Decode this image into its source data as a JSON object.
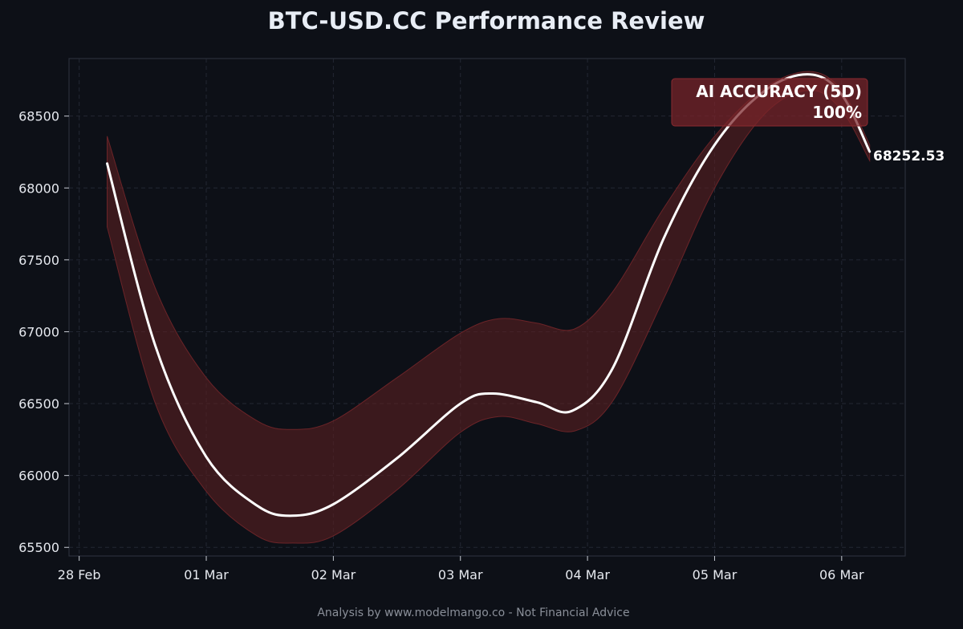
{
  "chart_data": {
    "type": "line",
    "title": "BTC-USD.CC Performance Review",
    "xlabel": "",
    "ylabel": "",
    "x_tick_labels": [
      "28 Feb",
      "01 Mar",
      "02 Mar",
      "03 Mar",
      "04 Mar",
      "05 Mar",
      "06 Mar"
    ],
    "y_ticks": [
      65500,
      66000,
      66500,
      67000,
      67500,
      68000,
      68500
    ],
    "xlim": [
      -0.08,
      6.5
    ],
    "ylim": [
      65440,
      68900
    ],
    "grid": true,
    "series": [
      {
        "role": "price",
        "x": [
          0.22,
          0.6,
          1.0,
          1.4,
          1.68,
          2.0,
          2.5,
          3.0,
          3.25,
          3.6,
          3.88,
          4.2,
          4.6,
          5.0,
          5.4,
          5.75,
          6.0,
          6.22
        ],
        "values": [
          68170,
          66900,
          66130,
          65790,
          65720,
          65800,
          66120,
          66500,
          66570,
          66510,
          66450,
          66750,
          67650,
          68300,
          68680,
          68790,
          68650,
          68252.53
        ]
      },
      {
        "role": "band-upper",
        "x": [
          0.22,
          0.6,
          1.0,
          1.4,
          1.68,
          2.0,
          2.5,
          3.0,
          3.3,
          3.6,
          3.9,
          4.2,
          4.6,
          5.0,
          5.4,
          5.75,
          6.0,
          6.22
        ],
        "values": [
          68360,
          67300,
          66680,
          66380,
          66320,
          66380,
          66680,
          66990,
          67090,
          67060,
          67020,
          67280,
          67860,
          68360,
          68700,
          68810,
          68680,
          68300
        ]
      },
      {
        "role": "band-lower",
        "x": [
          0.22,
          0.6,
          1.0,
          1.4,
          1.68,
          2.0,
          2.5,
          3.0,
          3.3,
          3.6,
          3.9,
          4.2,
          4.6,
          5.0,
          5.4,
          5.75,
          6.0,
          6.22
        ],
        "values": [
          67730,
          66500,
          65890,
          65580,
          65530,
          65580,
          65900,
          66300,
          66410,
          66360,
          66310,
          66520,
          67230,
          68000,
          68520,
          68680,
          68540,
          68190
        ]
      }
    ],
    "last_value_label": "68252.53",
    "annotation": {
      "line1": "AI ACCURACY (5D)",
      "line2": "100%",
      "position": "top-right"
    },
    "footer": "Analysis by www.modelmango.co - Not Financial Advice",
    "colors": {
      "background": "#0d1017",
      "line": "#ffffff",
      "band": "#5a1f22",
      "badge": "#6b2226"
    }
  }
}
